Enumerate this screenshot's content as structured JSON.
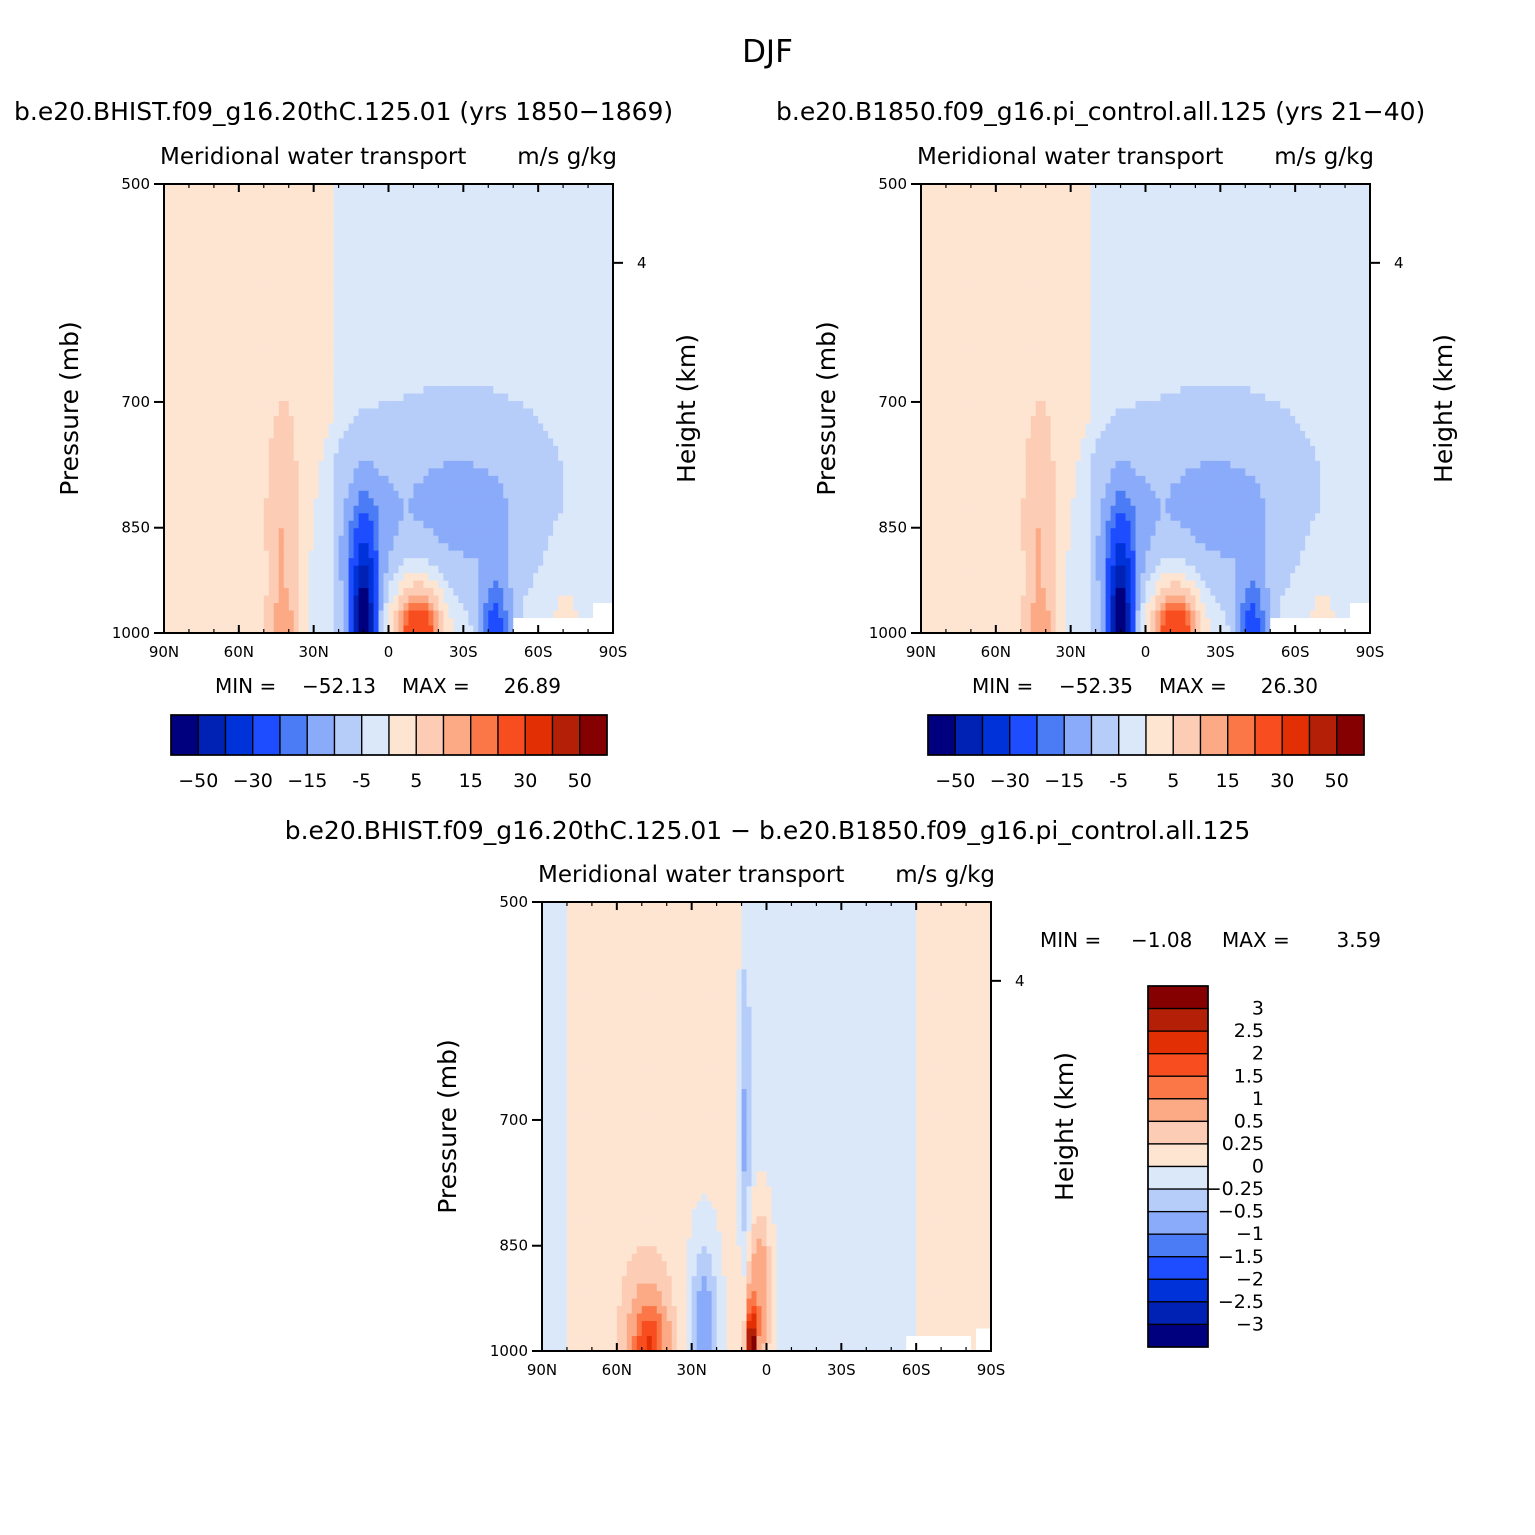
{
  "figure": {
    "title": "DJF",
    "colors": {
      "seq13": [
        "#00007f",
        "#0022b4",
        "#0032d9",
        "#1e4dff",
        "#4b7cf6",
        "#8aabf9",
        "#b6cdf9",
        "#dbe8fa",
        "#fde5d2",
        "#fcccb5",
        "#fca985",
        "#fb7748",
        "#f84d1f",
        "#e23004",
        "#b41f07",
        "#850000"
      ],
      "missing": "#ffffff"
    }
  },
  "chart_data": [
    {
      "type": "heatmap",
      "panel_title": "b.e20.BHIST.f09_g16.20thC.125.01 (yrs 1850−1869)",
      "title_left": "Meridional water transport",
      "title_right": "m/s g/kg",
      "ylabel": "Pressure (mb)",
      "ylabel_right": "Height (km)",
      "x_ticks": [
        "90N",
        "60N",
        "30N",
        "0",
        "30S",
        "60S",
        "90S"
      ],
      "y_ticks": [
        "500",
        "700",
        "850",
        "1000"
      ],
      "y_right_ticks": [
        "4"
      ],
      "xlim": [
        "90N",
        "90S"
      ],
      "ylim": [
        1000,
        500
      ],
      "min_label": "MIN =",
      "min_value": "−52.13",
      "max_label": "MAX =",
      "max_value": "26.89",
      "colorbar_levels": [
        -50,
        -40,
        -30,
        -20,
        -15,
        -10,
        -5,
        0,
        5,
        10,
        15,
        20,
        30,
        40,
        50
      ],
      "colorbar_labels": [
        "−50",
        "−30",
        "−15",
        "-5",
        "5",
        "15",
        "30",
        "50"
      ]
    },
    {
      "type": "heatmap",
      "panel_title": "b.e20.B1850.f09_g16.pi_control.all.125 (yrs 21−40)",
      "title_left": "Meridional water transport",
      "title_right": "m/s g/kg",
      "ylabel": "Pressure (mb)",
      "ylabel_right": "Height (km)",
      "x_ticks": [
        "90N",
        "60N",
        "30N",
        "0",
        "30S",
        "60S",
        "90S"
      ],
      "y_ticks": [
        "500",
        "700",
        "850",
        "1000"
      ],
      "y_right_ticks": [
        "4"
      ],
      "xlim": [
        "90N",
        "90S"
      ],
      "ylim": [
        1000,
        500
      ],
      "min_label": "MIN =",
      "min_value": "−52.35",
      "max_label": "MAX =",
      "max_value": "26.30",
      "colorbar_levels": [
        -50,
        -40,
        -30,
        -20,
        -15,
        -10,
        -5,
        0,
        5,
        10,
        15,
        20,
        30,
        40,
        50
      ],
      "colorbar_labels": [
        "−50",
        "−30",
        "−15",
        "-5",
        "5",
        "15",
        "30",
        "50"
      ]
    },
    {
      "type": "heatmap",
      "panel_title": "b.e20.BHIST.f09_g16.20thC.125.01 − b.e20.B1850.f09_g16.pi_control.all.125",
      "title_left": "Meridional water transport",
      "title_right": "m/s g/kg",
      "ylabel": "Pressure (mb)",
      "ylabel_right": "Height (km)",
      "x_ticks": [
        "90N",
        "60N",
        "30N",
        "0",
        "30S",
        "60S",
        "90S"
      ],
      "y_ticks": [
        "500",
        "700",
        "850",
        "1000"
      ],
      "y_right_ticks": [
        "4"
      ],
      "xlim": [
        "90N",
        "90S"
      ],
      "ylim": [
        1000,
        500
      ],
      "min_label": "MIN =",
      "min_value": "−1.08",
      "max_label": "MAX =",
      "max_value": "3.59",
      "colorbar_levels": [
        -3,
        -2.5,
        -2,
        -1.5,
        -1,
        -0.5,
        -0.25,
        0,
        0.25,
        0.5,
        1,
        1.5,
        2,
        2.5,
        3
      ],
      "colorbar_labels": [
        "3",
        "2.5",
        "2",
        "1.5",
        "1",
        "0.5",
        "0.25",
        "0",
        "−0.25",
        "−0.5",
        "−1",
        "−1.5",
        "−2",
        "−2.5",
        "−3"
      ]
    }
  ]
}
